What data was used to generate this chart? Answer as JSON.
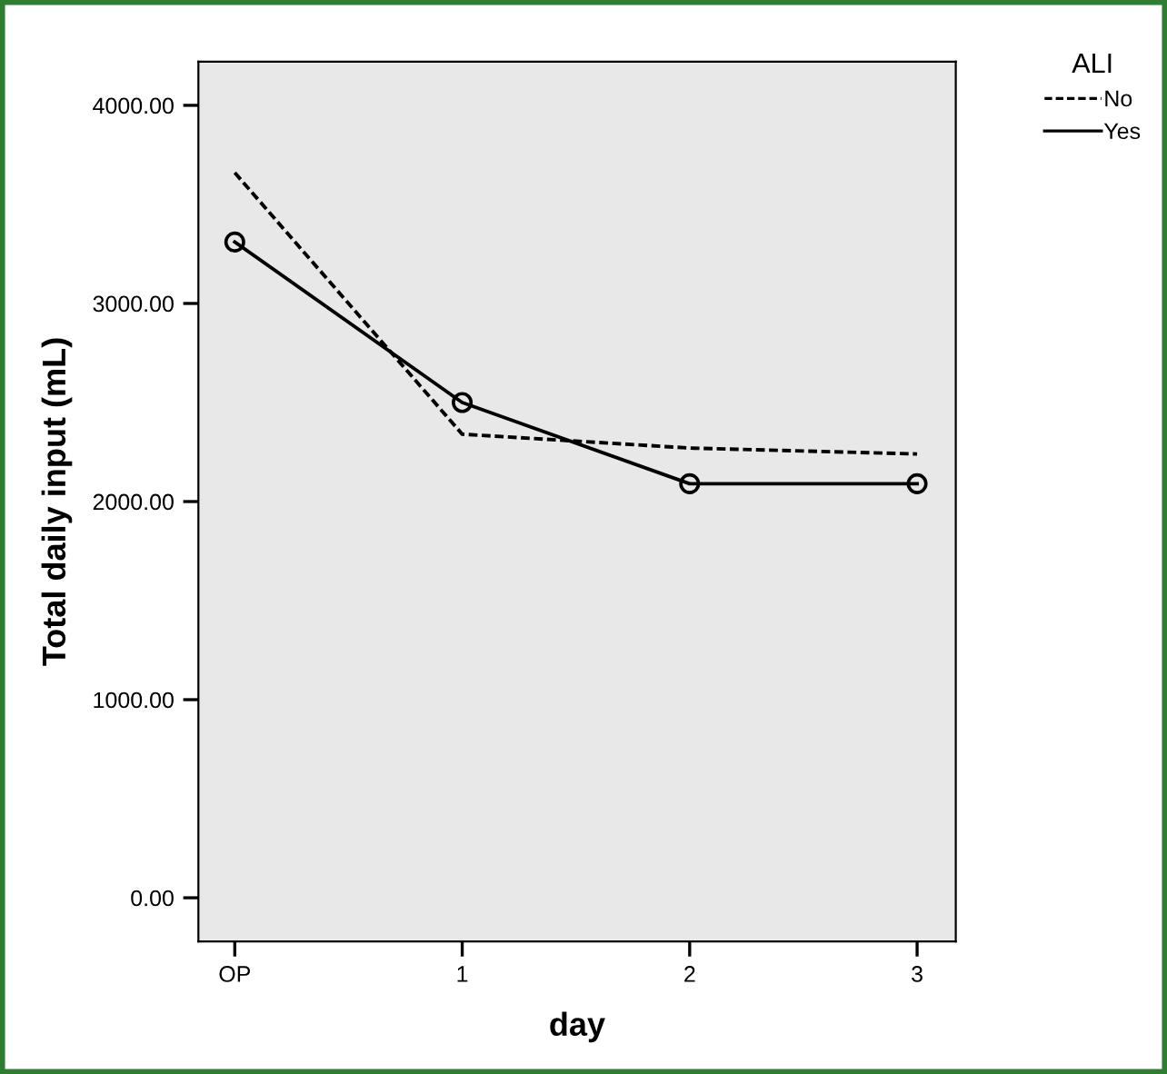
{
  "chart_data": {
    "type": "line",
    "xlabel": "day",
    "ylabel": "Total daily input (mL)",
    "legend_title": "ALI",
    "categories": [
      "OP",
      "1",
      "2",
      "3"
    ],
    "series": [
      {
        "name": "No",
        "color": "#000000",
        "line_style": "dashed",
        "marker": "none",
        "values": [
          3660,
          2340,
          2270,
          2240
        ]
      },
      {
        "name": "Yes",
        "color": "#000000",
        "line_style": "solid",
        "marker": "circle",
        "values": [
          3310,
          2500,
          2090,
          2090
        ]
      }
    ],
    "ylim": [
      -220,
      4220
    ],
    "yticks": [
      {
        "value": 0,
        "label": "0.00"
      },
      {
        "value": 1000,
        "label": "1000.00"
      },
      {
        "value": 2000,
        "label": "2000.00"
      },
      {
        "value": 3000,
        "label": "3000.00"
      },
      {
        "value": 4000,
        "label": "4000.00"
      }
    ],
    "grid": false,
    "legend": "top right"
  }
}
